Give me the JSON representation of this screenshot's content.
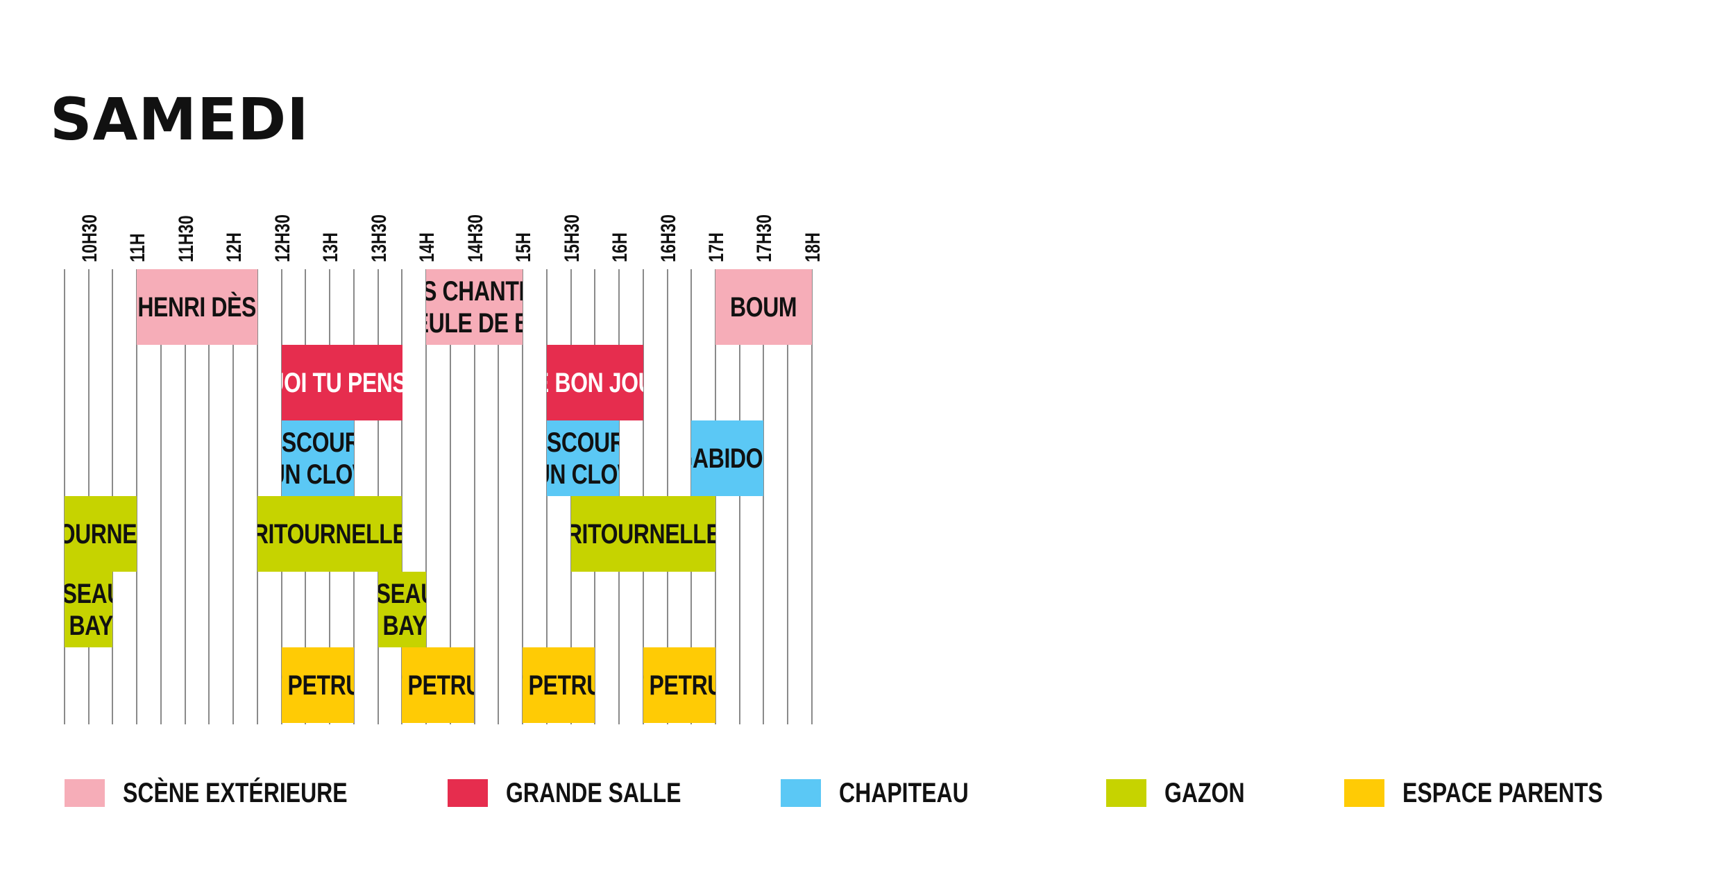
{
  "title": "SAMEDI",
  "chart_data": {
    "type": "timeline",
    "title": "SAMEDI",
    "time_ticks": [
      "10H30",
      "11H",
      "11H30",
      "12H",
      "12H30",
      "13H",
      "13H30",
      "14H",
      "14H30",
      "15H",
      "15H30",
      "16H",
      "16H30",
      "17H",
      "17H30",
      "18H"
    ],
    "x_range": [
      "10H15",
      "18H00"
    ],
    "venues": [
      {
        "id": "exterieure",
        "label": "SCÈNE EXTÉRIEURE",
        "color": "#f6adb8",
        "text_color": "#111111"
      },
      {
        "id": "grande",
        "label": "GRANDE SALLE",
        "color": "#e62d4e",
        "text_color": "#ffffff"
      },
      {
        "id": "chapiteau",
        "label": "CHAPITEAU",
        "color": "#5bc8f5",
        "text_color": "#111111"
      },
      {
        "id": "gazon",
        "label": "GAZON",
        "color": "#c6d300",
        "text_color": "#111111"
      },
      {
        "id": "parents",
        "label": "ESPACE PARENTS",
        "color": "#ffcb05",
        "text_color": "#111111"
      }
    ],
    "events": [
      {
        "lines": [
          "HENRI DÈS"
        ],
        "venue": "exterieure",
        "start": "11H00",
        "end": "12H15",
        "row": 0
      },
      {
        "lines": [
          "P’TITS CHANTEURS",
          "GUEULE DE BOIS"
        ],
        "venue": "exterieure",
        "start": "14H00",
        "end": "15H00",
        "row": 0
      },
      {
        "lines": [
          "BOUM"
        ],
        "venue": "exterieure",
        "start": "17H00",
        "end": "18H00",
        "row": 0
      },
      {
        "lines": [
          "À QUOI TU PENSES ?"
        ],
        "venue": "grande",
        "start": "12H30",
        "end": "13H45",
        "row": 1
      },
      {
        "lines": [
          "LE BON JOUR"
        ],
        "venue": "grande",
        "start": "15H15",
        "end": "16H15",
        "row": 1
      },
      {
        "lines": [
          "DISCOURS",
          "D’UN CLOWN"
        ],
        "venue": "chapiteau",
        "start": "12H30",
        "end": "13H15",
        "row": 2
      },
      {
        "lines": [
          "DISCOURS",
          "D’UN CLOWN"
        ],
        "venue": "chapiteau",
        "start": "15H15",
        "end": "16H00",
        "row": 2
      },
      {
        "lines": [
          "GABIDOU"
        ],
        "venue": "chapiteau",
        "start": "16H45",
        "end": "17H30",
        "row": 2
      },
      {
        "lines": [
          "RITOURNELLE"
        ],
        "venue": "gazon",
        "start": "10H15",
        "end": "11H00",
        "row": 3
      },
      {
        "lines": [
          "RITOURNELLE"
        ],
        "venue": "gazon",
        "start": "12H15",
        "end": "13H45",
        "row": 3
      },
      {
        "lines": [
          "RITOURNELLE"
        ],
        "venue": "gazon",
        "start": "15H30",
        "end": "17H00",
        "row": 3
      },
      {
        "lines": [
          "OISEAUX",
          "DU BAYOU"
        ],
        "venue": "gazon",
        "start": "10H15",
        "end": "10H45",
        "row": 4
      },
      {
        "lines": [
          "OISEAUX",
          "DU BAYOU"
        ],
        "venue": "gazon",
        "start": "13H30",
        "end": "14H00",
        "row": 4
      },
      {
        "lines": [
          "MAT PETRUCCI"
        ],
        "venue": "parents",
        "start": "12H30",
        "end": "13H15",
        "row": 5
      },
      {
        "lines": [
          "MAT PETRUCCI"
        ],
        "venue": "parents",
        "start": "13H45",
        "end": "14H30",
        "row": 5
      },
      {
        "lines": [
          "MAT PETRUCCI"
        ],
        "venue": "parents",
        "start": "15H00",
        "end": "15H45",
        "row": 5
      },
      {
        "lines": [
          "MAT PETRUCCI"
        ],
        "venue": "parents",
        "start": "16H15",
        "end": "17H00",
        "row": 5
      }
    ],
    "legend_position": "bottom"
  }
}
